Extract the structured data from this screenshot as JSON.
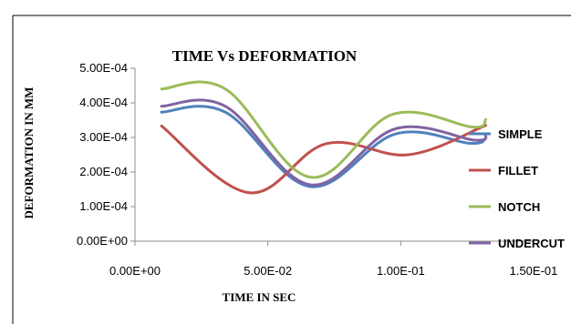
{
  "chart_data": {
    "type": "line",
    "title": "TIME Vs DEFORMATION",
    "xlabel": "TIME IN SEC",
    "ylabel": "DEFORMATION IN MM",
    "xlim": [
      0,
      0.15
    ],
    "ylim": [
      0,
      0.0005
    ],
    "x_ticks": [
      0,
      0.05,
      0.1,
      0.15
    ],
    "x_tick_labels": [
      "0.00E+00",
      "5.00E-02",
      "1.00E-01",
      "1.50E-01"
    ],
    "y_ticks": [
      0,
      0.0001,
      0.0002,
      0.0003,
      0.0004,
      0.0005
    ],
    "y_tick_labels": [
      "0.00E+00",
      "1.00E-04",
      "2.00E-04",
      "3.00E-04",
      "4.00E-04",
      "5.00E-04"
    ],
    "grid": false,
    "legend_position": "right",
    "series": [
      {
        "name": "SIMPLE",
        "color": "#4f81bd",
        "x": [
          0.01,
          0.034,
          0.066,
          0.098,
          0.126,
          0.132
        ],
        "y": [
          0.000373,
          0.000373,
          0.000158,
          0.00031,
          0.000283,
          0.000297
        ]
      },
      {
        "name": "FILLET",
        "color": "#c0504d",
        "x": [
          0.01,
          0.043,
          0.072,
          0.103,
          0.132
        ],
        "y": [
          0.000333,
          0.00014,
          0.000282,
          0.00025,
          0.000335
        ]
      },
      {
        "name": "NOTCH",
        "color": "#9bbb59",
        "x": [
          0.01,
          0.034,
          0.066,
          0.097,
          0.127,
          0.132
        ],
        "y": [
          0.00044,
          0.00044,
          0.000185,
          0.000367,
          0.00033,
          0.000352
        ]
      },
      {
        "name": "UNDERCUT",
        "color": "#8064a2",
        "x": [
          0.01,
          0.034,
          0.066,
          0.098,
          0.128,
          0.132
        ],
        "y": [
          0.00039,
          0.00039,
          0.000163,
          0.000325,
          0.000292,
          0.00031
        ]
      }
    ]
  }
}
